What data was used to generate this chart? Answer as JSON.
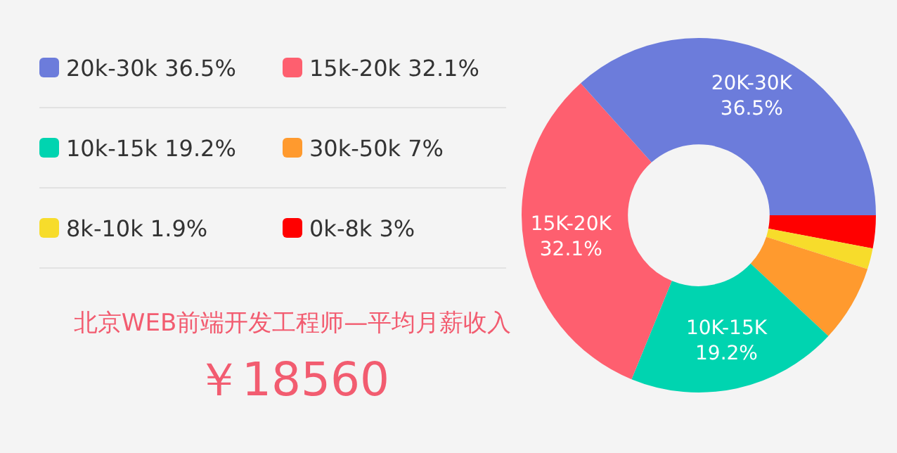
{
  "chart_data": {
    "type": "donut",
    "title": "北京WEB前端开发工程师—平均月薪收入",
    "annotations": [
      "￥18560"
    ],
    "categories": [
      "0k-8k 3%",
      "8k-10k 1.9%",
      "30k-50k 7%",
      "10k-15k 19.2%",
      "15k-20k 32.1%",
      "20k-30k 36.5%"
    ],
    "values": [
      3,
      1.9,
      7,
      19.2,
      32.1,
      36.5
    ],
    "colors": [
      "#ff0000",
      "#f7dc2b",
      "#ff9a2e",
      "#00d4b0",
      "#fe5f6f",
      "#6c7cdb"
    ],
    "value_labels": [
      null,
      null,
      null,
      "10K-15K\n19.2%",
      "15K-20K\n32.1%",
      "20K-30K\n36.5%"
    ],
    "legend": "left"
  }
}
